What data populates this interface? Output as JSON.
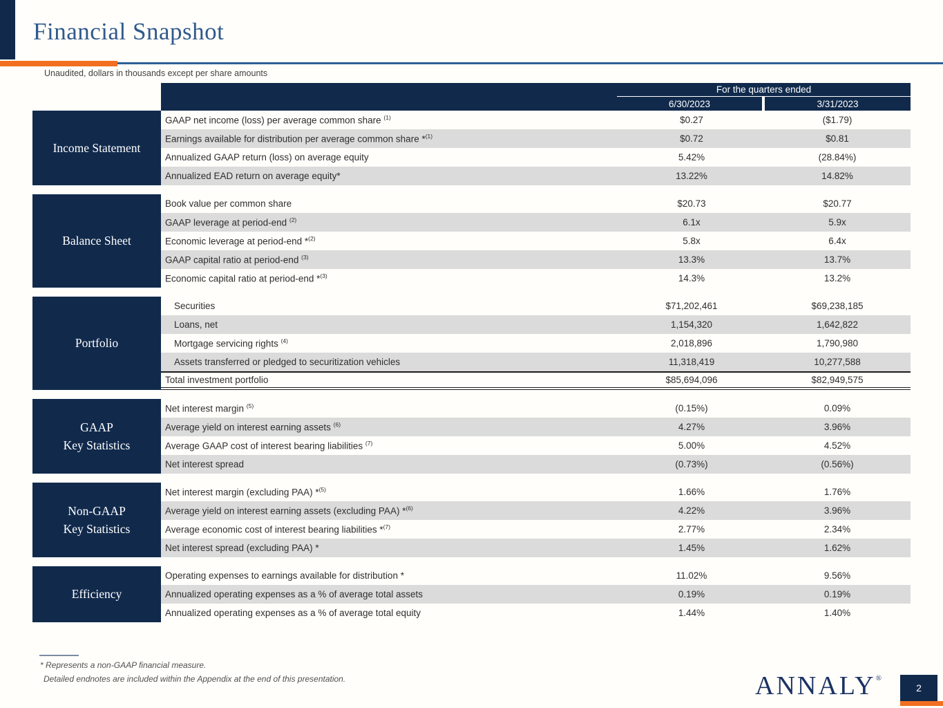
{
  "page": {
    "title": "Financial Snapshot",
    "subtitle": "Unaudited, dollars in thousands except per share amounts",
    "page_number": "2",
    "logo_text": "ANNALY",
    "logo_reg_mark": "®"
  },
  "colors": {
    "navy": "#112a4c",
    "orange": "#f26f21",
    "title_blue": "#30598c",
    "row_gray": "#dbdbdb",
    "logo_navy": "#1b3263"
  },
  "table": {
    "header": {
      "group_label": "For the quarters ended",
      "columns": [
        "6/30/2023",
        "3/31/2023"
      ]
    },
    "sections": [
      {
        "label_lines": [
          "Income Statement"
        ],
        "rows": [
          {
            "label": "GAAP net income (loss) per average common share ",
            "sup": "(1)",
            "values": [
              "$0.27",
              "($1.79)"
            ]
          },
          {
            "label": "Earnings available for distribution per average common share *",
            "sup": "(1)",
            "values": [
              "$0.72",
              "$0.81"
            ]
          },
          {
            "label": "Annualized GAAP return (loss) on average equity",
            "sup": "",
            "values": [
              "5.42%",
              "(28.84%)"
            ]
          },
          {
            "label": "Annualized EAD return on average equity*",
            "sup": "",
            "values": [
              "13.22%",
              "14.82%"
            ]
          }
        ]
      },
      {
        "label_lines": [
          "Balance Sheet"
        ],
        "rows": [
          {
            "label": "Book value per common share",
            "sup": "",
            "values": [
              "$20.73",
              "$20.77"
            ]
          },
          {
            "label": "GAAP leverage at period-end ",
            "sup": "(2)",
            "values": [
              "6.1x",
              "5.9x"
            ]
          },
          {
            "label": "Economic leverage at period-end *",
            "sup": "(2)",
            "values": [
              "5.8x",
              "6.4x"
            ]
          },
          {
            "label": "GAAP capital ratio at period-end ",
            "sup": "(3)",
            "values": [
              "13.3%",
              "13.7%"
            ]
          },
          {
            "label": "Economic capital ratio at period-end *",
            "sup": "(3)",
            "values": [
              "14.3%",
              "13.2%"
            ]
          }
        ]
      },
      {
        "label_lines": [
          "Portfolio"
        ],
        "rows": [
          {
            "label": "Securities",
            "sup": "",
            "indent": true,
            "values": [
              "$71,202,461",
              "$69,238,185"
            ]
          },
          {
            "label": "Loans, net",
            "sup": "",
            "indent": true,
            "values": [
              "1,154,320",
              "1,642,822"
            ]
          },
          {
            "label": "Mortgage servicing rights ",
            "sup": "(4)",
            "indent": true,
            "values": [
              "2,018,896",
              "1,790,980"
            ]
          },
          {
            "label": "Assets transferred or pledged to securitization vehicles",
            "sup": "",
            "indent": true,
            "values": [
              "11,318,419",
              "10,277,588"
            ]
          },
          {
            "label": "Total investment portfolio",
            "sup": "",
            "total": true,
            "values": [
              "$85,694,096",
              "$82,949,575"
            ]
          }
        ]
      },
      {
        "label_lines": [
          "GAAP",
          "Key Statistics"
        ],
        "rows": [
          {
            "label": "Net interest margin ",
            "sup": "(5)",
            "values": [
              "(0.15%)",
              "0.09%"
            ]
          },
          {
            "label": "Average yield on interest earning assets ",
            "sup": "(6)",
            "values": [
              "4.27%",
              "3.96%"
            ]
          },
          {
            "label": "Average GAAP cost of interest bearing liabilities ",
            "sup": "(7)",
            "values": [
              "5.00%",
              "4.52%"
            ]
          },
          {
            "label": "Net interest spread",
            "sup": "",
            "values": [
              "(0.73%)",
              "(0.56%)"
            ]
          }
        ]
      },
      {
        "label_lines": [
          "Non-GAAP",
          "Key Statistics"
        ],
        "rows": [
          {
            "label": "Net interest margin (excluding PAA) *",
            "sup": "(5)",
            "values": [
              "1.66%",
              "1.76%"
            ]
          },
          {
            "label": "Average yield on interest earning assets (excluding PAA) *",
            "sup": "(6)",
            "values": [
              "4.22%",
              "3.96%"
            ]
          },
          {
            "label": "Average economic cost of interest bearing liabilities *",
            "sup": "(7)",
            "values": [
              "2.77%",
              "2.34%"
            ]
          },
          {
            "label": "Net interest spread (excluding PAA) *",
            "sup": "",
            "values": [
              "1.45%",
              "1.62%"
            ]
          }
        ]
      },
      {
        "label_lines": [
          "Efficiency"
        ],
        "rows": [
          {
            "label": "Operating expenses to earnings available for distribution *",
            "sup": "",
            "values": [
              "11.02%",
              "9.56%"
            ]
          },
          {
            "label": "Annualized operating expenses as a % of average total assets",
            "sup": "",
            "values": [
              "0.19%",
              "0.19%"
            ]
          },
          {
            "label": "Annualized operating expenses as a % of average total equity",
            "sup": "",
            "values": [
              "1.44%",
              "1.40%"
            ]
          }
        ]
      }
    ]
  },
  "footnotes": {
    "line1": "* Represents a non-GAAP financial measure.",
    "line2": "Detailed endnotes are included within the Appendix at the end of this presentation."
  }
}
